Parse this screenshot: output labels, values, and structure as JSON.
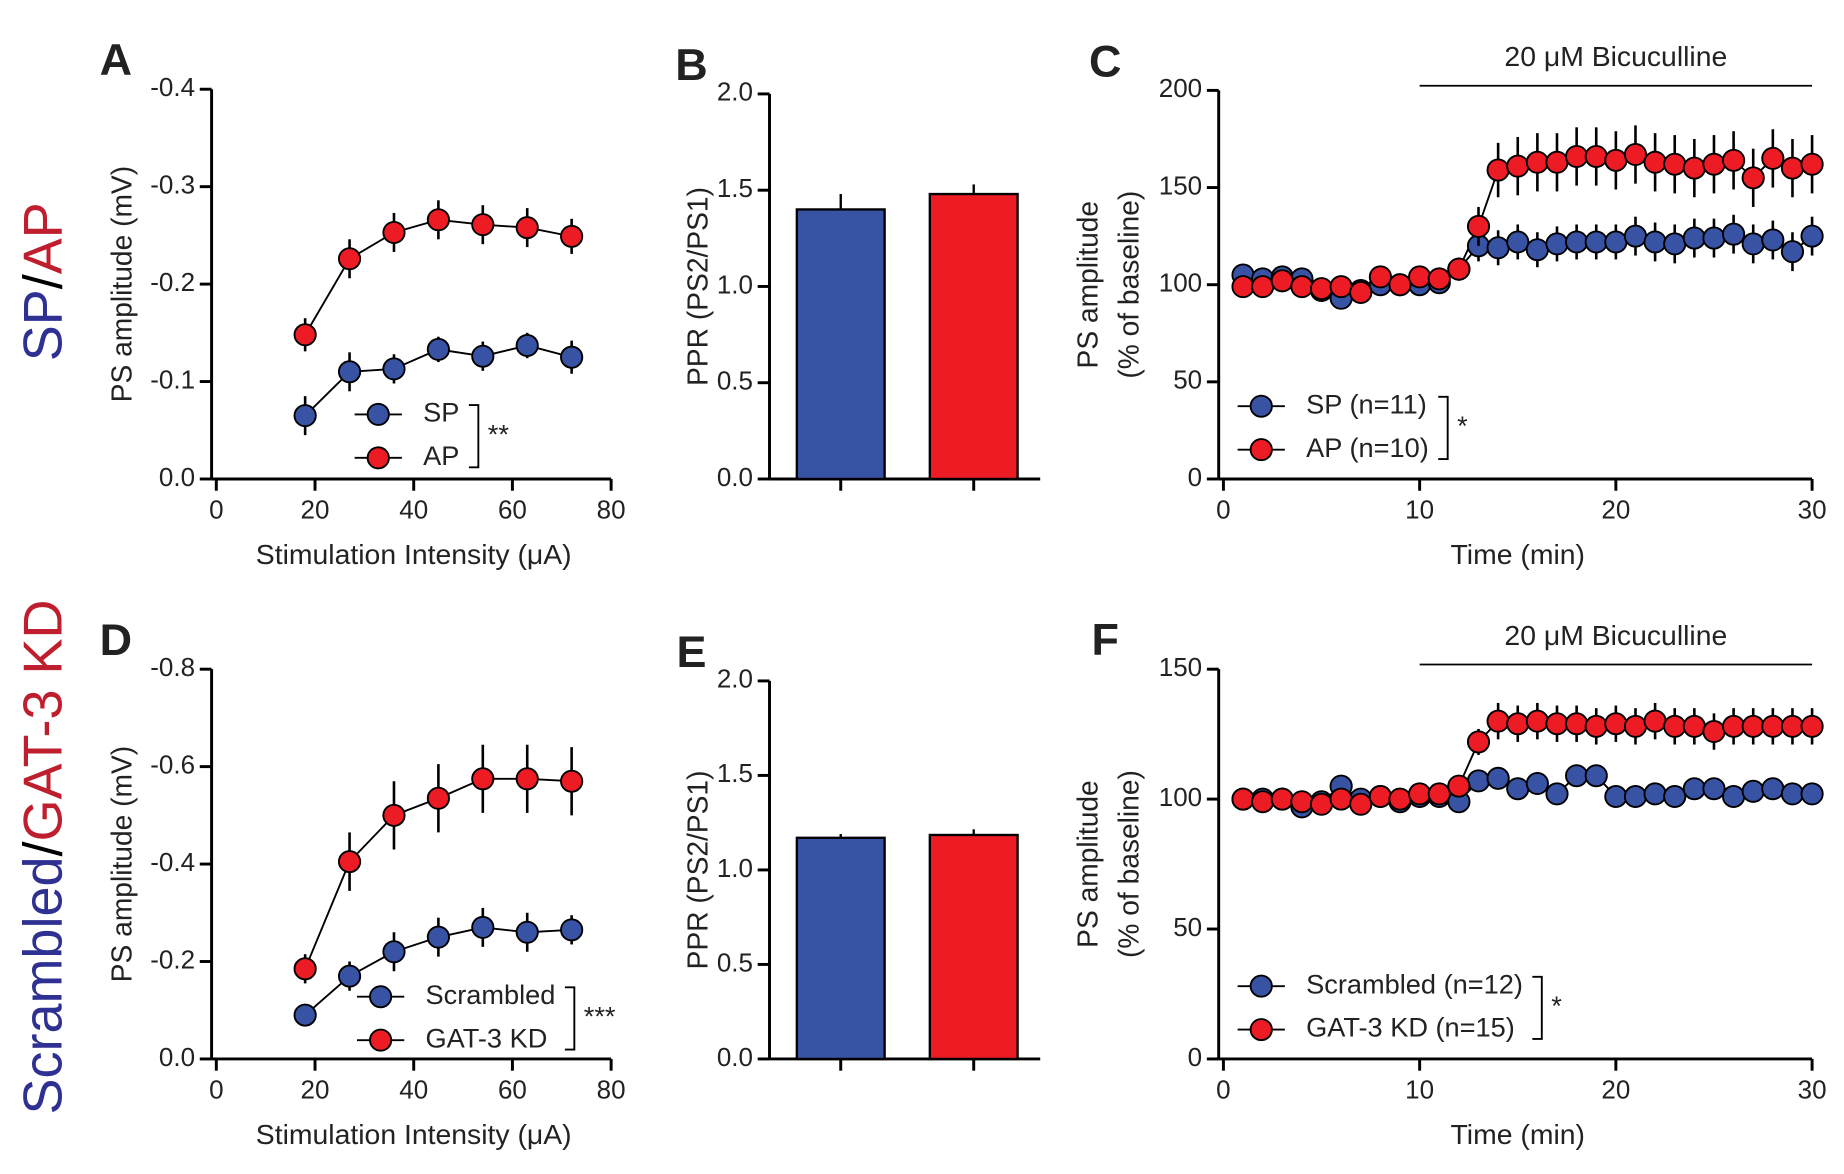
{
  "row_labels": [
    {
      "parts": [
        "SP",
        "/",
        "AP"
      ],
      "colors": [
        "#2e3192",
        "#000000",
        "#be1e2d"
      ]
    },
    {
      "parts": [
        "Scrambled",
        "/",
        "GAT-3 KD"
      ],
      "colors": [
        "#2e3192",
        "#000000",
        "#be1e2d"
      ]
    }
  ],
  "chart_data": [
    {
      "type": "line",
      "label": "A",
      "ylabel": [
        "PS amplitude (mV)"
      ],
      "xlabel": "Stimulation Intensity (μA)",
      "x": [
        18,
        27,
        36,
        45,
        54,
        63,
        72
      ],
      "xlim": [
        0,
        80
      ],
      "xticks": [
        0,
        20,
        40,
        60,
        80
      ],
      "ylim": [
        0,
        -0.4
      ],
      "yticks": [
        {
          "value": 0,
          "label": "0.0"
        },
        -0.1,
        -0.2,
        -0.3,
        -0.4
      ],
      "legend": "lower center",
      "annotation": "**",
      "series": [
        {
          "name": "SP",
          "color": "#3953a4",
          "values": [
            -0.065,
            -0.11,
            -0.113,
            -0.133,
            -0.126,
            -0.137,
            -0.125
          ],
          "errors": [
            0.02,
            0.02,
            0.015,
            0.013,
            0.015,
            0.013,
            0.017
          ]
        },
        {
          "name": "AP",
          "color": "#ed1c24",
          "values": [
            -0.148,
            -0.226,
            -0.253,
            -0.266,
            -0.261,
            -0.258,
            -0.249
          ],
          "errors": [
            0.017,
            0.02,
            0.02,
            0.02,
            0.02,
            0.02,
            0.018
          ]
        }
      ]
    },
    {
      "type": "bar",
      "label": "B",
      "ylabel": [
        "PPR (PS2/PS1)"
      ],
      "categories": [
        null,
        null
      ],
      "values": [
        1.4,
        1.48
      ],
      "errors": [
        0.08,
        0.05
      ],
      "colors": [
        "#3953a4",
        "#ed1c24"
      ],
      "ylim": [
        0,
        2
      ],
      "yticks": [
        {
          "value": 0,
          "label": "0.0"
        },
        {
          "value": 0.5,
          "label": "0.5"
        },
        {
          "value": 1,
          "label": "1.0"
        },
        {
          "value": 1.5,
          "label": "1.5"
        },
        {
          "value": 2,
          "label": "2.0"
        }
      ]
    },
    {
      "type": "line",
      "label": "C",
      "ylabel": [
        "PS amplitude",
        "(% of baseline)"
      ],
      "xlabel": "Time (min)",
      "x": [
        1,
        2,
        3,
        4,
        5,
        6,
        7,
        8,
        9,
        10,
        11,
        12,
        13,
        14,
        15,
        16,
        17,
        18,
        19,
        20,
        21,
        22,
        23,
        24,
        25,
        26,
        27,
        28,
        29,
        30
      ],
      "xlim": [
        0,
        30
      ],
      "xticks": [
        0,
        10,
        20,
        30
      ],
      "ylim": [
        0,
        200
      ],
      "yticks": [
        0,
        50,
        100,
        150,
        200
      ],
      "legend": "lower left",
      "annotation": "*",
      "span": {
        "label": "20 μM Bicuculline",
        "x": [
          10,
          30
        ]
      },
      "series": [
        {
          "name": "SP (n=11)",
          "color": "#3953a4",
          "values": [
            105,
            103,
            104,
            103,
            97,
            93,
            97,
            100,
            100,
            100,
            101,
            108,
            120,
            119,
            122,
            118,
            121,
            122,
            122,
            122,
            125,
            122,
            121,
            124,
            124,
            126,
            121,
            123,
            117,
            125
          ],
          "errors": [
            4,
            4,
            4,
            4,
            4,
            4,
            4,
            4,
            4,
            4,
            4,
            5,
            8,
            9,
            9,
            9,
            9,
            9,
            9,
            9,
            10,
            10,
            10,
            10,
            10,
            10,
            10,
            10,
            10,
            10
          ]
        },
        {
          "name": "AP (n=10)",
          "color": "#ed1c24",
          "values": [
            99,
            99,
            102,
            99,
            98,
            99,
            96,
            104,
            100,
            104,
            103,
            108,
            130,
            159,
            161,
            163,
            163,
            166,
            166,
            164,
            167,
            163,
            162,
            160,
            162,
            164,
            155,
            165,
            160,
            162
          ],
          "errors": [
            4,
            4,
            4,
            4,
            4,
            4,
            4,
            5,
            4,
            5,
            5,
            6,
            10,
            14,
            15,
            15,
            15,
            15,
            15,
            15,
            15,
            15,
            15,
            15,
            15,
            15,
            15,
            15,
            15,
            15
          ]
        }
      ]
    },
    {
      "type": "line",
      "label": "D",
      "ylabel": [
        "PS amplitude (mV)"
      ],
      "xlabel": "Stimulation Intensity (μA)",
      "x": [
        18,
        27,
        36,
        45,
        54,
        63,
        72
      ],
      "xlim": [
        0,
        80
      ],
      "xticks": [
        0,
        20,
        40,
        60,
        80
      ],
      "ylim": [
        0,
        -0.8
      ],
      "yticks": [
        {
          "value": 0,
          "label": "0.0"
        },
        -0.2,
        -0.4,
        -0.6,
        -0.8
      ],
      "legend": "lower right",
      "annotation": "***",
      "series": [
        {
          "name": "Scrambled",
          "color": "#3953a4",
          "values": [
            -0.09,
            -0.17,
            -0.22,
            -0.25,
            -0.27,
            -0.26,
            -0.265
          ],
          "errors": [
            0.015,
            0.03,
            0.04,
            0.04,
            0.04,
            0.04,
            0.03
          ]
        },
        {
          "name": "GAT-3 KD",
          "color": "#ed1c24",
          "values": [
            -0.185,
            -0.405,
            -0.5,
            -0.535,
            -0.575,
            -0.575,
            -0.57
          ],
          "errors": [
            0.03,
            0.06,
            0.07,
            0.07,
            0.07,
            0.07,
            0.07
          ]
        }
      ]
    },
    {
      "type": "bar",
      "label": "E",
      "ylabel": [
        "PPR (PS2/PS1)"
      ],
      "categories": [
        null,
        null
      ],
      "values": [
        1.17,
        1.185
      ],
      "errors": [
        0.02,
        0.03
      ],
      "colors": [
        "#3953a4",
        "#ed1c24"
      ],
      "ylim": [
        0,
        2
      ],
      "yticks": [
        {
          "value": 0,
          "label": "0.0"
        },
        {
          "value": 0.5,
          "label": "0.5"
        },
        {
          "value": 1,
          "label": "1.0"
        },
        {
          "value": 1.5,
          "label": "1.5"
        },
        {
          "value": 2,
          "label": "2.0"
        }
      ]
    },
    {
      "type": "line",
      "label": "F",
      "ylabel": [
        "PS amplitude",
        "(% of baseline)"
      ],
      "xlabel": "Time (min)",
      "x": [
        1,
        2,
        3,
        4,
        5,
        6,
        7,
        8,
        9,
        10,
        11,
        12,
        13,
        14,
        15,
        16,
        17,
        18,
        19,
        20,
        21,
        22,
        23,
        24,
        25,
        26,
        27,
        28,
        29,
        30
      ],
      "xlim": [
        0,
        30
      ],
      "xticks": [
        0,
        10,
        20,
        30
      ],
      "ylim": [
        0,
        150
      ],
      "yticks": [
        0,
        50,
        100,
        150
      ],
      "legend": "lower left",
      "annotation": "*",
      "span": {
        "label": "20 μM Bicuculline",
        "x": [
          10,
          30
        ]
      },
      "series": [
        {
          "name": "Scrambled (n=12)",
          "color": "#3953a4",
          "values": [
            100,
            100,
            100,
            97,
            99,
            105,
            100,
            101,
            99,
            101,
            101,
            99,
            107,
            108,
            104,
            106,
            102,
            109,
            109,
            101,
            101,
            102,
            101,
            104,
            104,
            101,
            103,
            104,
            102,
            102
          ],
          "errors": [
            2,
            2,
            2,
            2,
            2,
            2,
            2,
            2,
            2,
            2,
            2,
            2,
            3,
            3,
            3,
            3,
            3,
            3,
            3,
            3,
            3,
            3,
            3,
            3,
            3,
            3,
            3,
            3,
            3,
            3
          ]
        },
        {
          "name": "GAT-3 KD (n=15)",
          "color": "#ed1c24",
          "values": [
            100,
            99,
            100,
            99,
            98,
            100,
            98,
            101,
            100,
            102,
            102,
            105,
            122,
            130,
            129,
            130,
            129,
            129,
            128,
            129,
            128,
            130,
            128,
            128,
            126,
            128,
            128,
            128,
            128,
            128
          ],
          "errors": [
            2,
            2,
            2,
            2,
            2,
            2,
            2,
            2,
            2,
            2,
            2,
            3,
            5,
            7,
            7,
            7,
            7,
            7,
            7,
            7,
            7,
            7,
            7,
            7,
            7,
            7,
            7,
            7,
            7,
            7
          ]
        }
      ]
    }
  ]
}
